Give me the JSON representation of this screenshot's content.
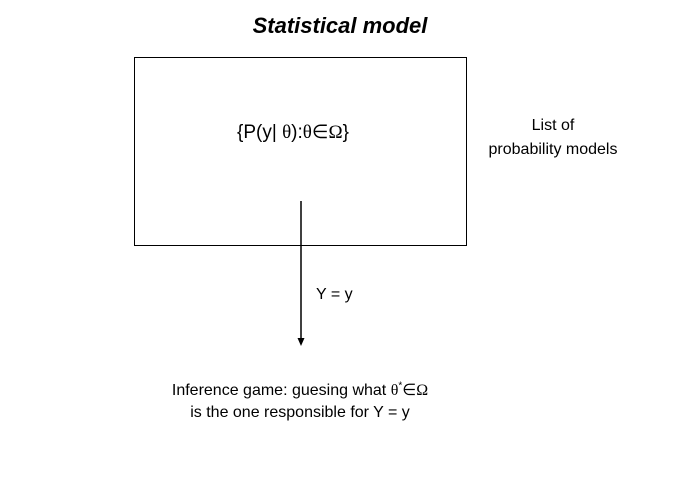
{
  "title": "Statistical model",
  "model_box": {
    "formula_open": "{P(y| ",
    "theta": "θ",
    "formula_mid": "):",
    "element_of": "∈",
    "omega": "Ω",
    "formula_close": "}"
  },
  "side_label": {
    "line1": "List of",
    "line2": "probability models"
  },
  "arrow_label": "Y = y",
  "inference": {
    "line1_prefix": "Inference game: guesing what ",
    "theta": "θ",
    "star": "*",
    "element_of": "∈",
    "omega": "Ω",
    "line2": "is the one responsible for Y = y"
  }
}
